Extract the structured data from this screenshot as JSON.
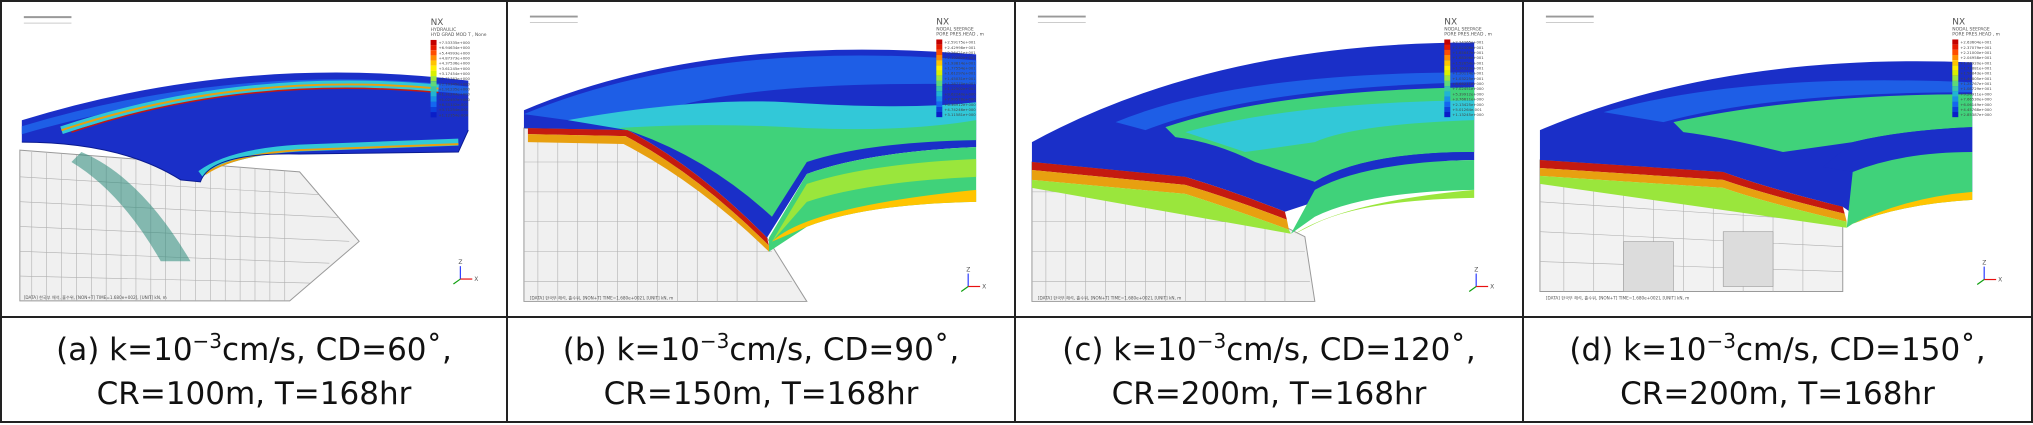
{
  "panels": [
    {
      "id": "a",
      "caption_prefix": "(a) k=10",
      "caption_exp": "−3",
      "caption_unit_tail": "cm/s, CD=60˚,",
      "caption_line2": "CR=100m, T=168hr",
      "footer_text": "[DATA] 한국부 해석, 홀수위, [NON+T] TIME=1.680e+002], [UNIT] kN, m",
      "legend_title": [
        "HYDRAULIC",
        "HYD GRAD MOD T , None"
      ],
      "legend_values": [
        "+7.53335e+000",
        "+6.94634e+000",
        "+5.44993e+000",
        "+4.87373e+000",
        "+4.37536e+000",
        "+3.61245e+000",
        "+3.17454e+000",
        "+2.71763e+000",
        "+2.10345e+000",
        "+1.91235e+000",
        "+1.31244e+000",
        "+1.02457e+000",
        "+6.35142e-001",
        "+3.71254e-001",
        "+1.12354e-004"
      ],
      "legend_colors": [
        "#c40000",
        "#e61a00",
        "#ff4d00",
        "#ff8c00",
        "#ffc400",
        "#ffee00",
        "#d8f000",
        "#9ae63c",
        "#5fd878",
        "#39c6a8",
        "#21b4d2",
        "#1890e6",
        "#1466f0",
        "#0c40dc",
        "#0a1ec8"
      ]
    },
    {
      "id": "b",
      "caption_prefix": "(b) k=10",
      "caption_exp": "−3",
      "caption_unit_tail": "cm/s, CD=90˚,",
      "caption_line2": "CR=150m, T=168hr",
      "footer_text": "[DATA] 한국부 해석, 홀수위, [NON+T] TIME=1.680e+002], [UNIT] kN, m",
      "legend_title": [
        "NODAL SEEPAGE",
        "PORE PRES.HEAD , m"
      ],
      "legend_values": [
        "+2.59175e+001",
        "+2.42998e+001",
        "+2.26421e+001",
        "+2.10262e+001",
        "+1.93814e+001",
        "+1.77554e+001",
        "+1.61297e+001",
        "+1.45031e+001",
        "+1.28770e+001",
        "+1.12502e+001",
        "+9.62240e+000",
        "+7.99578e+000",
        "+6.36912e+000",
        "+4.74246e+000",
        "+3.11581e+000"
      ],
      "legend_colors": [
        "#c40000",
        "#e61a00",
        "#ff4d00",
        "#ff8c00",
        "#ffc400",
        "#ffee00",
        "#d8f000",
        "#9ae63c",
        "#5fd878",
        "#39c6a8",
        "#21b4d2",
        "#1890e6",
        "#1466f0",
        "#0c40dc",
        "#0a1ec8"
      ]
    },
    {
      "id": "c",
      "caption_prefix": "(c) k=10",
      "caption_exp": "−3",
      "caption_unit_tail": "cm/s, CD=120˚,",
      "caption_line2": "CR=200m, T=168hr",
      "footer_text": "[DATA] 한국부 해석, 홀수위, [NON+T] TIME=1.680e+002], [UNIT] kN, m",
      "legend_title": [
        "NODAL SEEPAGE",
        "PORE PRES.HEAD , m"
      ],
      "legend_values": [
        "+2.24265e+001",
        "+2.02408e+001",
        "+1.85647e+001",
        "+1.68396e+001",
        "+1.52654e+001",
        "+1.36323e+001",
        "+1.20114e+001",
        "+1.03225e+001",
        "+8.66211e+000",
        "+7.02451e+000",
        "+5.39912e+000",
        "+3.76611e+000",
        "+2.13425e+000",
        "+5.01264e-001",
        "+1.13245e+000"
      ],
      "legend_colors": [
        "#c40000",
        "#e61a00",
        "#ff4d00",
        "#ff8c00",
        "#ffc400",
        "#ffee00",
        "#d8f000",
        "#9ae63c",
        "#5fd878",
        "#39c6a8",
        "#21b4d2",
        "#1890e6",
        "#1466f0",
        "#0c40dc",
        "#0a1ec8"
      ]
    },
    {
      "id": "d",
      "caption_prefix": "(d) k=10",
      "caption_exp": "−3",
      "caption_unit_tail": "cm/s, CD=150˚,",
      "caption_line2": "CR=200m, T=168hr",
      "footer_text": "[DATA] 한국부 해석, 홀수위, [NON+T] TIME=1.680e+002], [UNIT] kN, m",
      "legend_title": [
        "NODAL SEEPAGE",
        "PORE PRES.HEAD , m"
      ],
      "legend_values": [
        "+2.63604e+001",
        "+2.37079e+001",
        "+2.21000e+001",
        "+2.04958e+001",
        "+1.88920e+001",
        "+1.72881e+001",
        "+1.56843e+001",
        "+1.40805e+001",
        "+1.24767e+001",
        "+1.08729e+001",
        "+9.26911e+000",
        "+7.66530e+000",
        "+6.06149e+000",
        "+4.45768e+000",
        "+2.85387e+000"
      ],
      "legend_colors": [
        "#c40000",
        "#e61a00",
        "#ff4d00",
        "#ff8c00",
        "#ffc400",
        "#ffee00",
        "#d8f000",
        "#9ae63c",
        "#5fd878",
        "#39c6a8",
        "#21b4d2",
        "#1890e6",
        "#1466f0",
        "#0c40dc",
        "#0a1ec8"
      ]
    }
  ],
  "watermark": "NX",
  "axis_labels": {
    "z": "Z",
    "x": "X",
    "y": "Y"
  },
  "colors": {
    "dark_blue": "#1a2fc8",
    "mid_blue": "#1e5ee6",
    "cyan": "#32c8d8",
    "green": "#40d27a",
    "red": "#c41a10",
    "orange": "#e8a010",
    "mesh": "#8a8a8a"
  }
}
